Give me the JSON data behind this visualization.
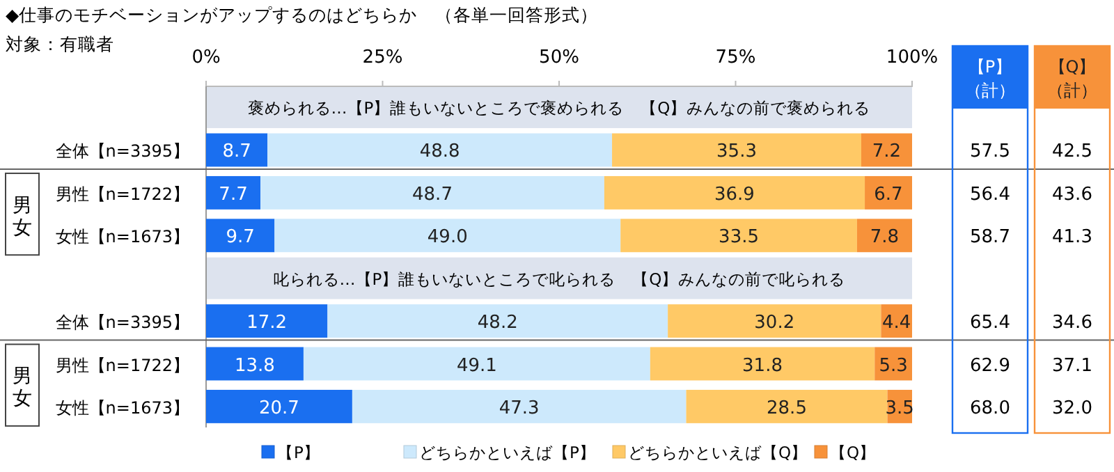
{
  "chart_data": {
    "type": "bar",
    "orientation": "horizontal",
    "stacked": true,
    "title": "◆仕事のモチベーションがアップするのはどちらか　（各単一回答形式）",
    "subtitle": "対象：有職者",
    "categories": [
      null,
      "全体【n=3395】",
      "男性【n=1722】",
      "女性【n=1673】",
      null,
      "全体【n=3395】",
      "男性【n=1722】",
      "女性【n=1673】"
    ],
    "series": [
      {
        "name": "【P】",
        "color": "#1a6ff0",
        "values": [
          null,
          8.7,
          7.7,
          9.7,
          null,
          17.2,
          13.8,
          20.7
        ],
        "value_labels": [
          null,
          "8.7",
          "7.7",
          "9.7",
          null,
          "17.2",
          "13.8",
          "20.7"
        ]
      },
      {
        "name": "どちらかといえば【P】",
        "color": "#cde9fc",
        "values": [
          null,
          48.8,
          48.7,
          49.0,
          null,
          48.2,
          49.1,
          47.3
        ],
        "value_labels": [
          null,
          "48.8",
          "48.7",
          "49.0",
          null,
          "48.2",
          "49.1",
          "47.3"
        ]
      },
      {
        "name": "どちらかといえば【Q】",
        "color": "#ffc966",
        "values": [
          null,
          35.3,
          36.9,
          33.5,
          null,
          30.2,
          31.8,
          28.5
        ],
        "value_labels": [
          null,
          "35.3",
          "36.9",
          "33.5",
          null,
          "30.2",
          "31.8",
          "28.5"
        ]
      },
      {
        "name": "【Q】",
        "color": "#f7923a",
        "values": [
          null,
          7.2,
          6.7,
          7.8,
          null,
          4.4,
          5.3,
          3.5
        ],
        "value_labels": [
          null,
          "7.2",
          "6.7",
          "7.8",
          null,
          "4.4",
          "5.3",
          "3.5"
        ]
      }
    ],
    "xlim": [
      0,
      100
    ],
    "xticks": [
      {
        "value": 0,
        "label": "0%"
      },
      {
        "value": 25,
        "label": "25%"
      },
      {
        "value": 50,
        "label": "50%"
      },
      {
        "value": 75,
        "label": "75%"
      },
      {
        "value": 100,
        "label": "100%"
      }
    ],
    "legend": "bottom",
    "annotations": [
      "褒められる…【P】誰もいないところで褒められる　【Q】みんなの前で褒められる",
      "叱られる…【P】誰もいないところで叱られる　【Q】みんなの前で叱られる",
      "男女",
      "男女",
      "【P】（計）",
      "【Q】（計）",
      "57.5",
      "56.4",
      "58.7",
      "65.4",
      "62.9",
      "68.0",
      "42.5",
      "43.6",
      "41.3",
      "34.6",
      "37.1",
      "32.0"
    ]
  }
}
